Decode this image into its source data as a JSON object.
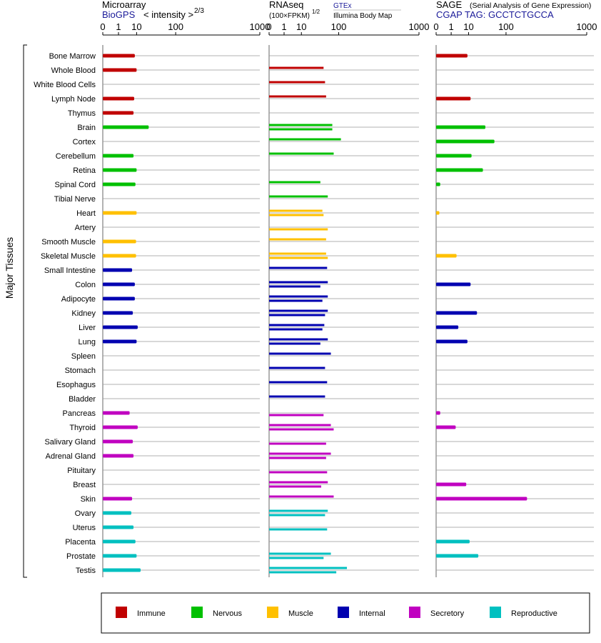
{
  "colors": {
    "Immune": "#c00000",
    "Nervous": "#00c000",
    "Muscle": "#ffc000",
    "Internal": "#0000b0",
    "Secretory": "#c000c0",
    "Reproductive": "#00c0c0"
  },
  "header": {
    "microarray_title": "Microarray",
    "microarray_source": "BioGPS",
    "microarray_scale": "< intensity >",
    "microarray_scale_exp": "2/3",
    "rnaseq_title": "RNAseq",
    "rnaseq_scale": "(100×FPKM)",
    "rnaseq_scale_exp": "1/2",
    "rnaseq_source_1": "GTEx",
    "rnaseq_source_2": "Illumina Body Map",
    "sage_title": "SAGE",
    "sage_subtitle": "(Serial Analysis of Gene Expression)",
    "sage_tag": "CGAP  TAG: GCCTCTGCCA"
  },
  "chart_data": {
    "type": "bar",
    "orientation": "horizontal",
    "y_axis_label": "Major Tissues",
    "x_ticks": [
      "0",
      "1",
      "10",
      "100",
      "1000"
    ],
    "x_range": [
      0,
      1000
    ],
    "legend": [
      "Immune",
      "Nervous",
      "Muscle",
      "Internal",
      "Secretory",
      "Reproductive"
    ],
    "legend_position": "bottom",
    "categories": [
      "Bone Marrow",
      "Whole Blood",
      "White Blood Cells",
      "Lymph Node",
      "Thymus",
      "Brain",
      "Cortex",
      "Cerebellum",
      "Retina",
      "Spinal Cord",
      "Tibial Nerve",
      "Heart",
      "Artery",
      "Smooth Muscle",
      "Skeletal Muscle",
      "Small Intestine",
      "Colon",
      "Adipocyte",
      "Kidney",
      "Liver",
      "Lung",
      "Spleen",
      "Stomach",
      "Esophagus",
      "Bladder",
      "Pancreas",
      "Thyroid",
      "Salivary Gland",
      "Adrenal Gland",
      "Pituitary",
      "Breast",
      "Skin",
      "Ovary",
      "Uterus",
      "Placenta",
      "Prostate",
      "Testis"
    ],
    "groups": [
      "Immune",
      "Immune",
      "Immune",
      "Immune",
      "Immune",
      "Nervous",
      "Nervous",
      "Nervous",
      "Nervous",
      "Nervous",
      "Nervous",
      "Muscle",
      "Muscle",
      "Muscle",
      "Muscle",
      "Internal",
      "Internal",
      "Internal",
      "Internal",
      "Internal",
      "Internal",
      "Internal",
      "Internal",
      "Internal",
      "Internal",
      "Secretory",
      "Secretory",
      "Secretory",
      "Secretory",
      "Secretory",
      "Secretory",
      "Secretory",
      "Reproductive",
      "Reproductive",
      "Reproductive",
      "Reproductive",
      "Reproductive"
    ],
    "microarray": [
      8.5,
      10,
      null,
      8,
      7.5,
      25,
      null,
      7.5,
      10,
      9,
      null,
      10,
      null,
      9.5,
      9.5,
      6.5,
      8.5,
      8.5,
      7,
      11,
      10,
      null,
      null,
      null,
      null,
      5,
      11,
      7,
      7.5,
      null,
      null,
      6.5,
      6,
      7.5,
      9,
      10,
      14
    ],
    "rnaseq_gtex": [
      null,
      48,
      52,
      55,
      null,
      75,
      110,
      80,
      null,
      40,
      60,
      45,
      null,
      55,
      55,
      58,
      60,
      60,
      60,
      50,
      60,
      70,
      52,
      58,
      52,
      null,
      70,
      null,
      70,
      null,
      60,
      80,
      60,
      null,
      null,
      70,
      140
    ],
    "rnaseq_ibm": [
      null,
      null,
      null,
      null,
      null,
      75,
      null,
      null,
      null,
      null,
      null,
      48,
      60,
      null,
      60,
      null,
      40,
      45,
      52,
      45,
      40,
      null,
      null,
      null,
      null,
      48,
      80,
      55,
      55,
      58,
      42,
      null,
      52,
      58,
      null,
      48,
      90
    ],
    "sage": [
      9,
      null,
      null,
      12,
      null,
      35,
      58,
      13,
      30,
      0.02,
      null,
      0.01,
      null,
      null,
      2.5,
      null,
      12,
      null,
      20,
      3.2,
      9,
      null,
      null,
      null,
      null,
      0.02,
      2.2,
      null,
      null,
      null,
      8,
      220,
      null,
      null,
      11,
      22,
      null
    ]
  },
  "legend_labels": {
    "Immune": "Immune",
    "Nervous": "Nervous",
    "Muscle": "Muscle",
    "Internal": "Internal",
    "Secretory": "Secretory",
    "Reproductive": "Reproductive"
  }
}
